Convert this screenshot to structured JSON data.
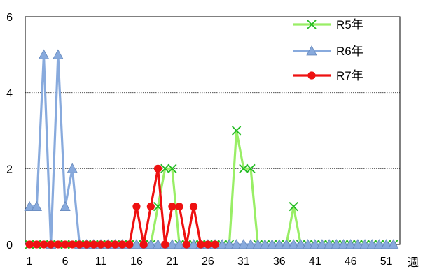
{
  "chart_data": {
    "type": "line",
    "title": "",
    "xlabel": "週",
    "ylabel": "",
    "ylim": [
      0,
      6
    ],
    "xlim": [
      1,
      52
    ],
    "y_ticks": [
      0,
      2,
      4,
      6
    ],
    "x_ticks": [
      1,
      6,
      11,
      16,
      21,
      26,
      31,
      36,
      41,
      46,
      51
    ],
    "grid": "horizontal",
    "legend_position": "top-right",
    "series": [
      {
        "name": "R5年",
        "color": "#99ee66",
        "marker": "x",
        "x": [
          1,
          2,
          3,
          4,
          5,
          6,
          7,
          8,
          9,
          10,
          11,
          12,
          13,
          14,
          15,
          16,
          17,
          18,
          19,
          20,
          21,
          22,
          23,
          24,
          25,
          26,
          27,
          28,
          29,
          30,
          31,
          32,
          33,
          34,
          35,
          36,
          37,
          38,
          39,
          40,
          41,
          42,
          43,
          44,
          45,
          46,
          47,
          48,
          49,
          50,
          51,
          52
        ],
        "values": [
          0,
          0,
          0,
          0,
          0,
          0,
          0,
          0,
          0,
          0,
          0,
          0,
          0,
          0,
          0,
          0,
          0,
          0,
          1,
          2,
          2,
          0,
          0,
          0,
          0,
          0,
          0,
          0,
          0,
          3,
          2,
          2,
          0,
          0,
          0,
          0,
          0,
          1,
          0,
          0,
          0,
          0,
          0,
          0,
          0,
          0,
          0,
          0,
          0,
          0,
          0,
          0
        ]
      },
      {
        "name": "R6年",
        "color": "#88aadd",
        "marker": "triangle",
        "x": [
          1,
          2,
          3,
          4,
          5,
          6,
          7,
          8,
          9,
          10,
          11,
          12,
          13,
          14,
          15,
          16,
          17,
          18,
          19,
          20,
          21,
          22,
          23,
          24,
          25,
          26,
          27,
          28,
          29,
          30,
          31,
          32,
          33,
          34,
          35,
          36,
          37,
          38,
          39,
          40,
          41,
          42,
          43,
          44,
          45,
          46,
          47,
          48,
          49,
          50,
          51,
          52
        ],
        "values": [
          1,
          1,
          5,
          0,
          5,
          1,
          2,
          0,
          0,
          0,
          0,
          0,
          0,
          0,
          0,
          0,
          0,
          0,
          0,
          0,
          0,
          0,
          0,
          0,
          0,
          0,
          0,
          0,
          0,
          0,
          0,
          0,
          0,
          0,
          0,
          0,
          0,
          0,
          0,
          0,
          0,
          0,
          0,
          0,
          0,
          0,
          0,
          0,
          0,
          0,
          0,
          0
        ]
      },
      {
        "name": "R7年",
        "color": "#ee1111",
        "marker": "circle",
        "x": [
          1,
          2,
          3,
          4,
          5,
          6,
          7,
          8,
          9,
          10,
          11,
          12,
          13,
          14,
          15,
          16,
          17,
          18,
          19,
          20,
          21,
          22,
          23,
          24,
          25,
          26,
          27
        ],
        "values": [
          0,
          0,
          0,
          0,
          0,
          0,
          0,
          0,
          0,
          0,
          0,
          0,
          0,
          0,
          0,
          1,
          0,
          1,
          2,
          0,
          1,
          1,
          0,
          1,
          0,
          0,
          0
        ]
      }
    ]
  }
}
